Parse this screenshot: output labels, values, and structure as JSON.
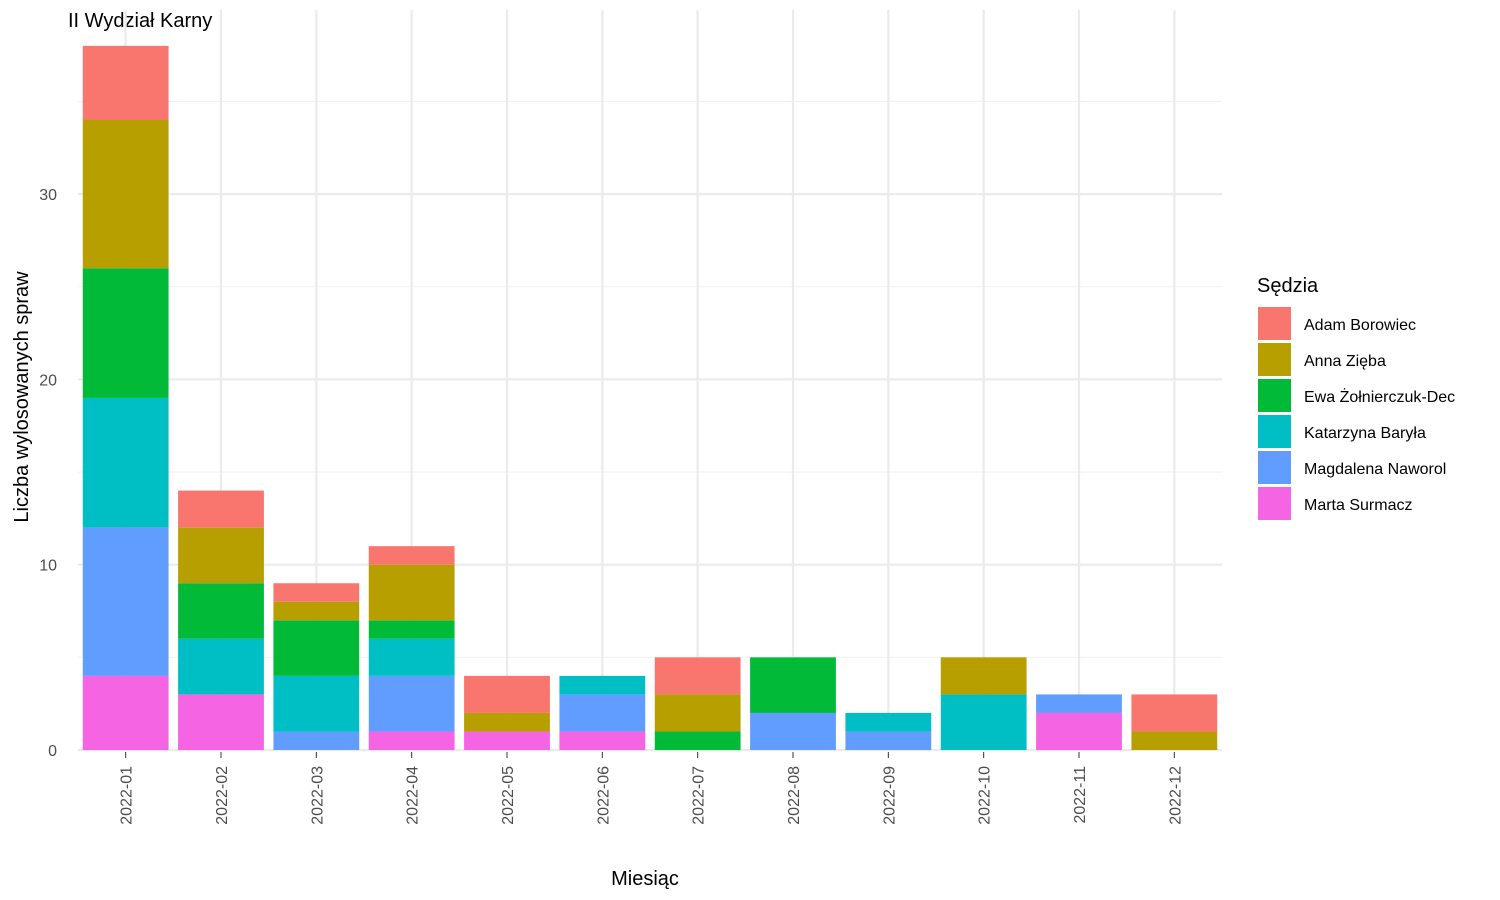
{
  "chart_data": {
    "type": "bar",
    "stacked": true,
    "title": "II Wydział Karny",
    "xlabel": "Miesiąc",
    "ylabel": "Liczba wylosowanych spraw",
    "ylim": [
      0,
      38
    ],
    "yticks": [
      0,
      10,
      20,
      30
    ],
    "grid": true,
    "legend": {
      "title": "Sędzia",
      "placement": "right"
    },
    "categories": [
      "2022-01",
      "2022-02",
      "2022-03",
      "2022-04",
      "2022-05",
      "2022-06",
      "2022-07",
      "2022-08",
      "2022-09",
      "2022-10",
      "2022-11",
      "2022-12"
    ],
    "series": [
      {
        "name": "Adam Borowiec",
        "color": "#F8766D",
        "values": [
          4,
          2,
          1,
          1,
          2,
          0,
          2,
          0,
          0,
          0,
          0,
          2
        ]
      },
      {
        "name": "Anna Zięba",
        "color": "#B79F00",
        "values": [
          8,
          3,
          1,
          3,
          1,
          0,
          2,
          0,
          0,
          2,
          0,
          1
        ]
      },
      {
        "name": "Ewa Żołnierczuk-Dec",
        "color": "#00BA38",
        "values": [
          7,
          3,
          3,
          1,
          0,
          0,
          1,
          3,
          0,
          0,
          0,
          0
        ]
      },
      {
        "name": "Katarzyna Baryła",
        "color": "#00BFC4",
        "values": [
          7,
          3,
          3,
          2,
          0,
          1,
          0,
          0,
          1,
          3,
          0,
          0
        ]
      },
      {
        "name": "Magdalena Naworol",
        "color": "#619CFF",
        "values": [
          8,
          0,
          1,
          3,
          0,
          2,
          0,
          2,
          1,
          0,
          1,
          0
        ]
      },
      {
        "name": "Marta Surmacz",
        "color": "#F564E3",
        "values": [
          4,
          3,
          0,
          1,
          1,
          1,
          0,
          0,
          0,
          0,
          2,
          0
        ]
      }
    ]
  }
}
